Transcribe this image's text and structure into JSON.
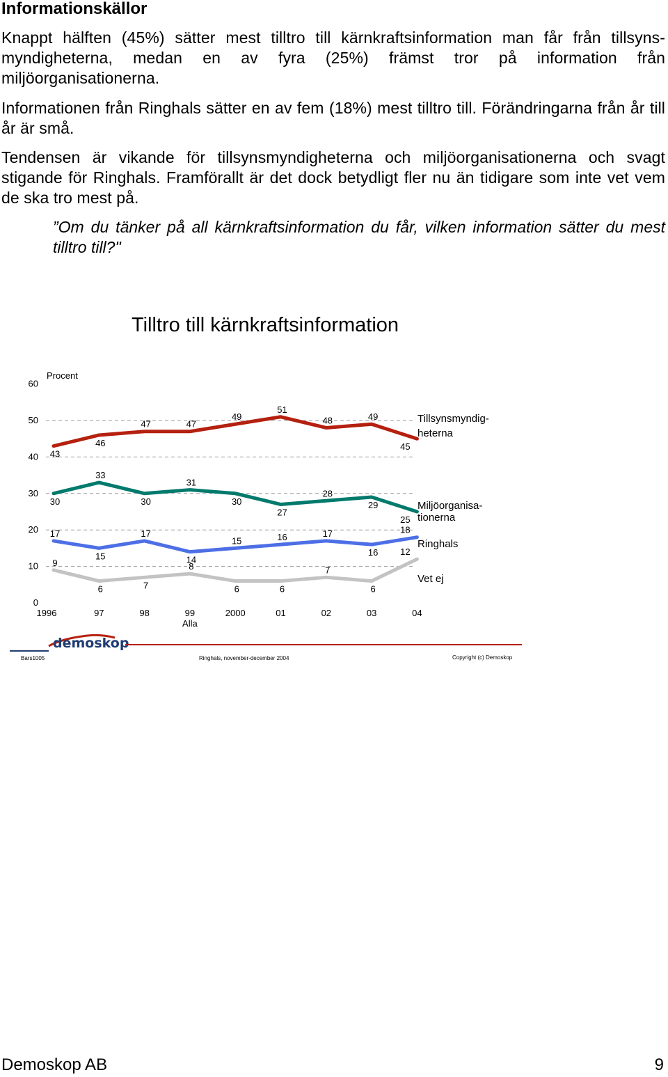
{
  "heading": "Informationskällor",
  "paragraphs": [
    "Knappt hälften (45%) sätter mest tilltro till kärnkraftsinformation man får från tillsyns-myndigheterna, medan en av fyra (25%) främst tror på information från miljöorganisationerna.",
    "Informationen från Ringhals sätter en av fem (18%) mest tilltro till. Förändringarna från år till år är små.",
    "Tendensen är vikande för tillsynsmyndigheterna och miljöorganisationerna och svagt stigande för Ringhals. Framförallt är det dock betydligt fler nu än tidigare som inte vet vem de ska tro mest på."
  ],
  "question": "”Om du tänker på all kärnkraftsinformation du får, vilken information sätter du mest tilltro till?\"",
  "chart_data": {
    "type": "line",
    "title": "Tilltro till kärnkraftsinformation",
    "ylabel": "Procent",
    "ylim": [
      0,
      60
    ],
    "yticks": [
      "0",
      "10",
      "20",
      "30",
      "40",
      "50",
      "60"
    ],
    "categories": [
      "1996",
      "97",
      "98",
      "99",
      "2000",
      "01",
      "02",
      "03",
      "04"
    ],
    "category_sublabel": {
      "index": 3,
      "text": "Alla"
    },
    "grid": "dashed horizontal",
    "legend": "right, labels at line ends",
    "series": [
      {
        "name": "Tillsynsmyndig-heterna",
        "name_lines": [
          "Tillsynsmyndig-",
          "heterna"
        ],
        "color": "#b5200f",
        "values": [
          43,
          46,
          47,
          47,
          49,
          51,
          48,
          49,
          45
        ]
      },
      {
        "name": "Miljöorganisa-tionerna",
        "name_lines": [
          "Miljöorganisa-",
          "tionerna"
        ],
        "color": "#007a6c",
        "values": [
          30,
          33,
          30,
          31,
          30,
          27,
          28,
          29,
          25
        ]
      },
      {
        "name": "Ringhals",
        "name_lines": [
          "Ringhals"
        ],
        "color": "#4d6fe6",
        "values": [
          17,
          15,
          17,
          14,
          15,
          16,
          17,
          16,
          18
        ]
      },
      {
        "name": "Vet ej",
        "name_lines": [
          "Vet ej"
        ],
        "color": "#c3c3c3",
        "values": [
          9,
          6,
          7,
          8,
          6,
          6,
          7,
          6,
          12
        ]
      }
    ]
  },
  "chart_footer": {
    "logo_text": "demoskop",
    "left": "Bars1005",
    "center": "Ringhals, november-december 2004",
    "right": "Copyright (c) Demoskop"
  },
  "page_footer": {
    "company": "Demoskop AB",
    "page_number": "9"
  }
}
